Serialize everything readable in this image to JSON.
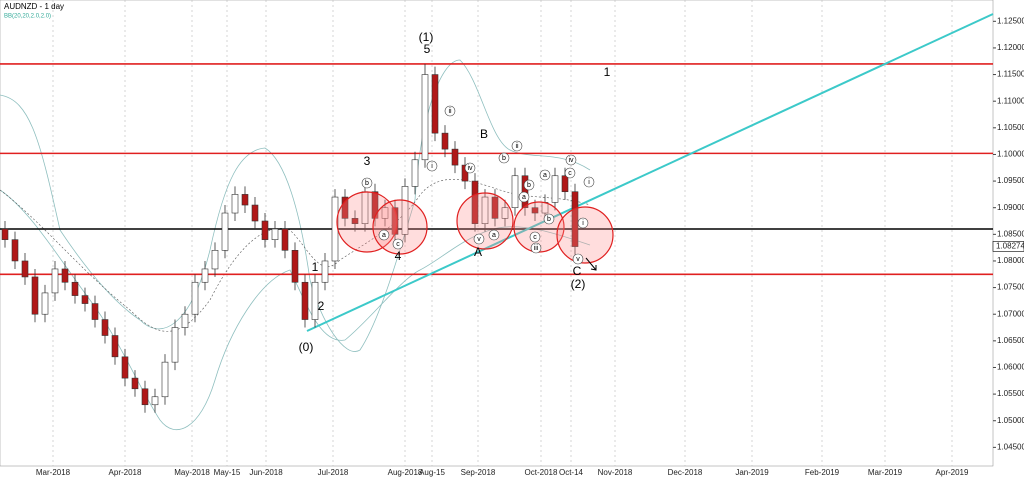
{
  "chart_data": {
    "type": "candlestick",
    "title": "AUDNZD - 1 day",
    "subtitle": "BB(20,20,2.0,2.0)",
    "categories": [
      null,
      null,
      null,
      null,
      null,
      null,
      null,
      null,
      null,
      null,
      null,
      null,
      null,
      null,
      null,
      null,
      null,
      null,
      null,
      null,
      null,
      null,
      null,
      null,
      null,
      null,
      null,
      null,
      null,
      null,
      null,
      null,
      null,
      null,
      null,
      null,
      null,
      null,
      null,
      null,
      null,
      null,
      null,
      null,
      null,
      null,
      null,
      null,
      null,
      null,
      null,
      null,
      null,
      null,
      null,
      null,
      null,
      null
    ],
    "open": [
      1.086,
      1.084,
      1.08,
      1.077,
      1.07,
      1.074,
      1.0785,
      1.076,
      1.0735,
      1.072,
      1.069,
      1.066,
      1.062,
      1.058,
      1.056,
      1.053,
      1.0545,
      1.061,
      1.0675,
      1.07,
      1.076,
      1.0785,
      1.082,
      1.089,
      1.0925,
      1.0905,
      1.0875,
      1.084,
      1.086,
      1.082,
      1.076,
      1.069,
      1.076,
      1.08,
      1.092,
      1.088,
      1.087,
      1.093,
      1.088,
      1.09,
      1.085,
      1.094,
      1.099,
      1.115,
      1.104,
      1.101,
      1.098,
      1.095,
      1.087,
      1.092,
      1.088,
      1.09,
      1.096,
      1.09,
      1.089,
      1.091,
      1.096,
      1.093
    ],
    "high": [
      1.0875,
      1.0855,
      1.0815,
      1.0785,
      1.0755,
      1.08,
      1.08,
      1.0775,
      1.075,
      1.0735,
      1.0705,
      1.0675,
      1.0635,
      1.0595,
      1.0575,
      1.056,
      1.0625,
      1.069,
      1.0715,
      1.0775,
      1.08,
      1.0835,
      1.0905,
      1.094,
      1.094,
      1.092,
      1.089,
      1.0875,
      1.0875,
      1.0835,
      1.0775,
      1.0775,
      1.0815,
      1.0935,
      1.0935,
      1.0895,
      1.0945,
      1.0945,
      1.0915,
      1.0915,
      1.0955,
      1.1005,
      1.117,
      1.1165,
      1.1055,
      1.1025,
      1.0995,
      1.0965,
      1.0935,
      1.0935,
      1.0915,
      1.0975,
      1.0975,
      1.0915,
      1.0925,
      1.0975,
      1.0975,
      1.0945
    ],
    "low": [
      1.0825,
      1.0785,
      1.0755,
      1.0685,
      1.0685,
      1.0725,
      1.0745,
      1.072,
      1.0705,
      1.0675,
      1.0645,
      1.0605,
      1.0565,
      1.0545,
      1.0515,
      1.0515,
      1.053,
      1.0595,
      1.066,
      1.0685,
      1.0745,
      1.077,
      1.0805,
      1.0875,
      1.089,
      1.086,
      1.0825,
      1.0825,
      1.0805,
      1.0745,
      1.0675,
      1.0675,
      1.0745,
      1.0785,
      1.0865,
      1.0855,
      1.0855,
      1.0865,
      1.0865,
      1.0835,
      1.0835,
      1.0925,
      1.0975,
      1.1025,
      1.0995,
      1.0965,
      1.0935,
      1.0855,
      1.0855,
      1.0865,
      1.0865,
      1.0885,
      1.0885,
      1.0875,
      1.0875,
      1.0895,
      1.0915,
      1.0812
    ],
    "close": [
      1.084,
      1.08,
      1.077,
      1.07,
      1.074,
      1.0785,
      1.076,
      1.0735,
      1.072,
      1.069,
      1.066,
      1.062,
      1.058,
      1.056,
      1.053,
      1.0545,
      1.061,
      1.0675,
      1.07,
      1.076,
      1.0785,
      1.082,
      1.089,
      1.0925,
      1.0905,
      1.0875,
      1.084,
      1.086,
      1.082,
      1.076,
      1.069,
      1.076,
      1.08,
      1.092,
      1.088,
      1.087,
      1.093,
      1.088,
      1.09,
      1.085,
      1.094,
      1.099,
      1.115,
      1.104,
      1.101,
      1.098,
      1.095,
      1.087,
      1.092,
      1.088,
      1.09,
      1.096,
      1.09,
      1.089,
      1.091,
      1.096,
      1.093,
      1.0827
    ],
    "up_color": "#ffffff",
    "down_color": "#b01818",
    "ylim": [
      1.0415,
      1.129
    ],
    "yticks": [
      {
        "value": 1.045,
        "label": "1.04500"
      },
      {
        "value": 1.05,
        "label": "1.05000"
      },
      {
        "value": 1.055,
        "label": "1.05500"
      },
      {
        "value": 1.06,
        "label": "1.06000"
      },
      {
        "value": 1.065,
        "label": "1.06500"
      },
      {
        "value": 1.07,
        "label": "1.07000"
      },
      {
        "value": 1.075,
        "label": "1.07500"
      },
      {
        "value": 1.08,
        "label": "1.08000"
      },
      {
        "value": 1.085,
        "label": "1.08500"
      },
      {
        "value": 1.09,
        "label": "1.09000"
      },
      {
        "value": 1.095,
        "label": "1.09500"
      },
      {
        "value": 1.1,
        "label": "1.10000"
      },
      {
        "value": 1.105,
        "label": "1.10500"
      },
      {
        "value": 1.11,
        "label": "1.11000"
      },
      {
        "value": 1.115,
        "label": "1.11500"
      },
      {
        "value": 1.12,
        "label": "1.12000"
      },
      {
        "value": 1.125,
        "label": "1.12500"
      }
    ],
    "last_price": {
      "value": 1.08274,
      "label": "1.08274"
    },
    "x_labels": [
      "Mar-2018",
      "Apr-2018",
      "May-2018",
      "May-15",
      "Jun-2018",
      "Jul-2018",
      "Aug-2018",
      "Aug-15",
      "Sep-2018",
      "Oct-2018",
      "Oct-14",
      "Nov-2018",
      "Dec-2018",
      "Jan-2019",
      "Feb-2019",
      "Mar-2019",
      "Apr-2019"
    ],
    "levels": [
      {
        "value": 1.117,
        "color": "#e02020"
      },
      {
        "value": 1.1002,
        "color": "#e02020"
      },
      {
        "value": 1.086,
        "color": "#000000"
      },
      {
        "value": 1.0775,
        "color": "#e02020"
      }
    ],
    "annotations": [
      "(1)",
      "5",
      "1",
      "B",
      "3",
      "1",
      "2",
      "(0)",
      "4",
      "A",
      "C",
      "(2)"
    ],
    "circled_labels": [
      "ii",
      "i",
      "iv",
      "b",
      "a",
      "c",
      "v",
      "a",
      "ii",
      "b",
      "a",
      "c",
      "iv",
      "i",
      "b",
      "a",
      "b",
      "c",
      "iii",
      "i",
      "v"
    ]
  }
}
